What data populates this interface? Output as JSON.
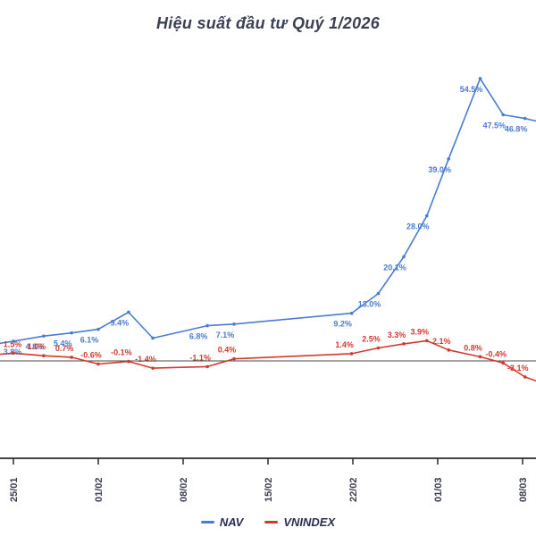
{
  "title": "Hiệu suất đầu tư Quý 1/2026",
  "colors": {
    "nav": "#4a7cd1",
    "vnindex": "#d23a30",
    "title_text": "#3b3f54",
    "axis": "#2b2b2b",
    "zero_line": "#4a4a4a",
    "tick_label": "#3a3d4f",
    "legend_text": "#2b2e52",
    "background": "#ffffff"
  },
  "legend": {
    "items": [
      {
        "label": "NAV",
        "color": "#4a7cd1"
      },
      {
        "label": "VNINDEX",
        "color": "#d23a30"
      }
    ]
  },
  "chart_data": {
    "type": "line",
    "title": "Hiệu suất đầu tư Quý 1/2026",
    "y_unit": "percent",
    "x_axis": {
      "tick_labels": [
        "25/01",
        "01/02",
        "08/02",
        "15/02",
        "22/02",
        "01/03",
        "08/03"
      ],
      "tick_days": [
        0,
        7,
        14,
        21,
        28,
        35,
        42
      ]
    },
    "y_axis": {
      "zero_line": true,
      "range_pct": [
        -8,
        60
      ],
      "gridlines": false
    },
    "series": [
      {
        "name": "NAV",
        "color": "#4a7cd1",
        "label_position": "below",
        "points": [
          {
            "day": -1.1,
            "value": 3.4,
            "label": null,
            "edge": true
          },
          {
            "day": 0,
            "value": 3.8,
            "label": "3.8%"
          },
          {
            "day": 2.5,
            "value": 4.8,
            "label": "4.8%"
          },
          {
            "day": 4.8,
            "value": 5.4,
            "label": "5.4%"
          },
          {
            "day": 7,
            "value": 6.1,
            "label": "6.1%"
          },
          {
            "day": 9.5,
            "value": 9.4,
            "label": "9.4%"
          },
          {
            "day": 11.5,
            "value": 4.4,
            "label": null
          },
          {
            "day": 16,
            "value": 6.8,
            "label": "6.8%"
          },
          {
            "day": 18.2,
            "value": 7.1,
            "label": "7.1%"
          },
          {
            "day": 27.9,
            "value": 9.2,
            "label": "9.2%"
          },
          {
            "day": 30.1,
            "value": 13.0,
            "label": "13.0%"
          },
          {
            "day": 32.2,
            "value": 20.1,
            "label": "20.1%"
          },
          {
            "day": 34.1,
            "value": 28.0,
            "label": "28.0%"
          },
          {
            "day": 35.9,
            "value": 39.0,
            "label": "39.0%"
          },
          {
            "day": 38.5,
            "value": 54.5,
            "label": "54.5%"
          },
          {
            "day": 40.4,
            "value": 47.5,
            "label": "47.5%"
          },
          {
            "day": 42.2,
            "value": 46.8,
            "label": "46.8%"
          },
          {
            "day": 43.3,
            "value": 46.2,
            "label": null,
            "edge": true
          }
        ]
      },
      {
        "name": "VNINDEX",
        "color": "#d23a30",
        "label_position": "above",
        "points": [
          {
            "day": -1.1,
            "value": 1.3,
            "label": null,
            "edge": true
          },
          {
            "day": 0,
            "value": 1.5,
            "label": "1.5%"
          },
          {
            "day": 2.5,
            "value": 1.0,
            "label": "1.0%"
          },
          {
            "day": 4.8,
            "value": 0.7,
            "label": "0.7%"
          },
          {
            "day": 7,
            "value": -0.6,
            "label": "-0.6%"
          },
          {
            "day": 9.5,
            "value": -0.1,
            "label": "-0.1%"
          },
          {
            "day": 11.5,
            "value": -1.4,
            "label": "-1.4%"
          },
          {
            "day": 16,
            "value": -1.1,
            "label": "-1.1%"
          },
          {
            "day": 18.2,
            "value": 0.4,
            "label": "0.4%"
          },
          {
            "day": 27.9,
            "value": 1.4,
            "label": "1.4%"
          },
          {
            "day": 30.1,
            "value": 2.5,
            "label": "2.5%"
          },
          {
            "day": 32.2,
            "value": 3.3,
            "label": "3.3%"
          },
          {
            "day": 34.1,
            "value": 3.9,
            "label": "3.9%"
          },
          {
            "day": 35.9,
            "value": 2.1,
            "label": "2.1%"
          },
          {
            "day": 38.5,
            "value": 0.8,
            "label": "0.8%"
          },
          {
            "day": 40.4,
            "value": -0.4,
            "label": "-0.4%"
          },
          {
            "day": 42.2,
            "value": -3.1,
            "label": "-3.1%"
          },
          {
            "day": 43.3,
            "value": -4.0,
            "label": null,
            "edge": true
          }
        ]
      }
    ]
  }
}
